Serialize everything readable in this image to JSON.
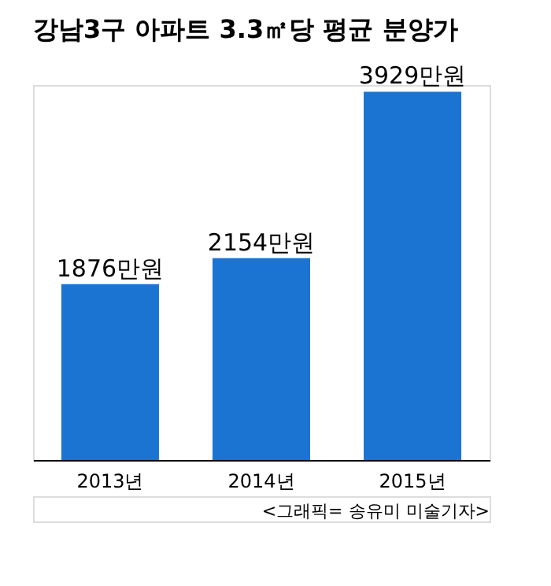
{
  "chart_data": {
    "type": "bar",
    "title": "강남3구 아파트 3.3㎡당 평균 분양가",
    "categories": [
      "2013년",
      "2014년",
      "2015년"
    ],
    "values": [
      1876,
      2154,
      3929
    ],
    "value_labels": [
      "1876만원",
      "2154만원",
      "3929만원"
    ],
    "color": "#1b74d1",
    "annotations": [
      "<그래픽= 송유미 미술기자>"
    ]
  }
}
